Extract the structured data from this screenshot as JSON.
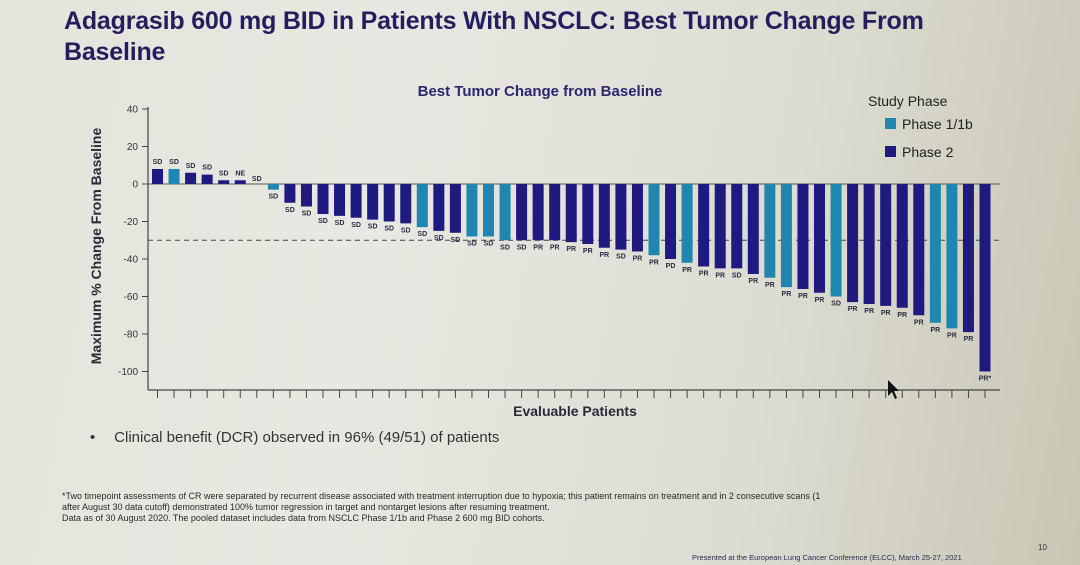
{
  "slide": {
    "title": "Adagrasib 600 mg BID in Patients With NSCLC: Best Tumor Change From Baseline",
    "bullet": "Clinical benefit (DCR) observed in 96% (49/51) of patients",
    "footnote_lines": [
      "*Two timepoint assessments of CR were separated by recurrent disease associated with treatment interruption due to hypoxia; this patient remains on treatment and in 2 consecutive scans (1",
      "after August 30 data cutoff) demonstrated 100% tumor regression in target and nontarget lesions after resuming treatment.",
      "Data as of 30 August 2020. The pooled dataset includes data from NSCLC Phase 1/1b and Phase 2 600 mg BID cohorts."
    ],
    "presented_at": "Presented at the European Lung Cancer Conference (ELCC), March 25-27, 2021",
    "page_number": "10"
  },
  "colors": {
    "phase_1_1b": "#1e86b0",
    "phase_2": "#1f1a80",
    "title": "#231f5e"
  },
  "chart_data": {
    "type": "bar",
    "title": "Best Tumor Change from Baseline",
    "xlabel": "Evaluable Patients",
    "ylabel": "Maximum % Change From Baseline",
    "ylim": [
      -110,
      40
    ],
    "yticks": [
      40,
      20,
      0,
      -20,
      -40,
      -60,
      -80,
      -100
    ],
    "reference_line": -30,
    "grid": false,
    "legend": {
      "title": "Study Phase",
      "placement": "top-right",
      "entries": [
        {
          "name": "Phase 1/1b",
          "color_key": "phase_1_1b"
        },
        {
          "name": "Phase 2",
          "color_key": "phase_2"
        }
      ]
    },
    "patients": [
      {
        "value": 8,
        "response": "SD",
        "phase": "Phase 2"
      },
      {
        "value": 8,
        "response": "SD",
        "phase": "Phase 1/1b"
      },
      {
        "value": 6,
        "response": "SD",
        "phase": "Phase 2"
      },
      {
        "value": 5,
        "response": "SD",
        "phase": "Phase 2"
      },
      {
        "value": 2,
        "response": "SD",
        "phase": "Phase 2"
      },
      {
        "value": 2,
        "response": "NE",
        "phase": "Phase 2"
      },
      {
        "value": 0,
        "response": "SD",
        "phase": "Phase 2"
      },
      {
        "value": -3,
        "response": "SD",
        "phase": "Phase 1/1b"
      },
      {
        "value": -10,
        "response": "SD",
        "phase": "Phase 2"
      },
      {
        "value": -12,
        "response": "SD",
        "phase": "Phase 2"
      },
      {
        "value": -16,
        "response": "SD",
        "phase": "Phase 2"
      },
      {
        "value": -17,
        "response": "SD",
        "phase": "Phase 2"
      },
      {
        "value": -18,
        "response": "SD",
        "phase": "Phase 2"
      },
      {
        "value": -19,
        "response": "SD",
        "phase": "Phase 2"
      },
      {
        "value": -20,
        "response": "SD",
        "phase": "Phase 2"
      },
      {
        "value": -21,
        "response": "SD",
        "phase": "Phase 2"
      },
      {
        "value": -23,
        "response": "SD",
        "phase": "Phase 1/1b"
      },
      {
        "value": -25,
        "response": "SD",
        "phase": "Phase 2"
      },
      {
        "value": -26,
        "response": "SD",
        "phase": "Phase 2"
      },
      {
        "value": -28,
        "response": "SD",
        "phase": "Phase 1/1b"
      },
      {
        "value": -28,
        "response": "SD",
        "phase": "Phase 1/1b"
      },
      {
        "value": -30,
        "response": "SD",
        "phase": "Phase 1/1b"
      },
      {
        "value": -30,
        "response": "SD",
        "phase": "Phase 2"
      },
      {
        "value": -30,
        "response": "PR",
        "phase": "Phase 2"
      },
      {
        "value": -30,
        "response": "PR",
        "phase": "Phase 2"
      },
      {
        "value": -31,
        "response": "PR",
        "phase": "Phase 2"
      },
      {
        "value": -32,
        "response": "PR",
        "phase": "Phase 2"
      },
      {
        "value": -34,
        "response": "PR",
        "phase": "Phase 2"
      },
      {
        "value": -35,
        "response": "SD",
        "phase": "Phase 2"
      },
      {
        "value": -36,
        "response": "PR",
        "phase": "Phase 2"
      },
      {
        "value": -38,
        "response": "PR",
        "phase": "Phase 1/1b"
      },
      {
        "value": -40,
        "response": "PD",
        "phase": "Phase 2"
      },
      {
        "value": -42,
        "response": "PR",
        "phase": "Phase 1/1b"
      },
      {
        "value": -44,
        "response": "PR",
        "phase": "Phase 2"
      },
      {
        "value": -45,
        "response": "PR",
        "phase": "Phase 2"
      },
      {
        "value": -45,
        "response": "SD",
        "phase": "Phase 2"
      },
      {
        "value": -48,
        "response": "PR",
        "phase": "Phase 2"
      },
      {
        "value": -50,
        "response": "PR",
        "phase": "Phase 1/1b"
      },
      {
        "value": -55,
        "response": "PR",
        "phase": "Phase 1/1b"
      },
      {
        "value": -56,
        "response": "PR",
        "phase": "Phase 2"
      },
      {
        "value": -58,
        "response": "PR",
        "phase": "Phase 2"
      },
      {
        "value": -60,
        "response": "SD",
        "phase": "Phase 1/1b"
      },
      {
        "value": -63,
        "response": "PR",
        "phase": "Phase 2"
      },
      {
        "value": -64,
        "response": "PR",
        "phase": "Phase 2"
      },
      {
        "value": -65,
        "response": "PR",
        "phase": "Phase 2"
      },
      {
        "value": -66,
        "response": "PR",
        "phase": "Phase 2"
      },
      {
        "value": -70,
        "response": "PR",
        "phase": "Phase 2"
      },
      {
        "value": -74,
        "response": "PR",
        "phase": "Phase 1/1b"
      },
      {
        "value": -77,
        "response": "PR",
        "phase": "Phase 1/1b"
      },
      {
        "value": -79,
        "response": "PR",
        "phase": "Phase 2"
      },
      {
        "value": -100,
        "response": "PR*",
        "phase": "Phase 2"
      }
    ]
  }
}
